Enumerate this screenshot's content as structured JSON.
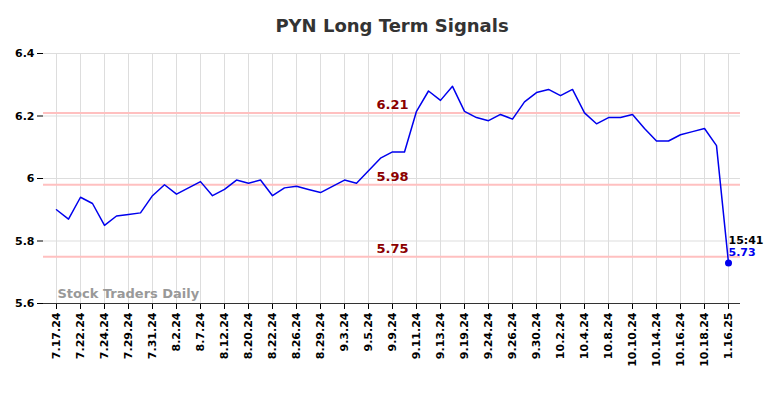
{
  "chart_data": {
    "type": "line",
    "title": "PYN Long Term Signals",
    "categories": [
      "7.17.24",
      null,
      "7.22.24",
      null,
      "7.24.24",
      null,
      "7.29.24",
      null,
      "7.31.24",
      null,
      "8.2.24",
      null,
      "8.7.24",
      null,
      "8.12.24",
      null,
      "8.20.24",
      null,
      "8.22.24",
      null,
      "8.26.24",
      null,
      "8.29.24",
      null,
      "9.3.24",
      null,
      "9.5.24",
      null,
      "9.9.24",
      null,
      "9.11.24",
      null,
      "9.13.24",
      null,
      "9.19.24",
      null,
      "9.24.24",
      null,
      "9.26.24",
      null,
      "9.30.24",
      null,
      "10.2.24",
      null,
      "10.4.24",
      null,
      "10.8.24",
      null,
      "10.10.24",
      null,
      "10.14.24",
      null,
      "10.16.24",
      null,
      "10.18.24",
      null,
      "1.16.25"
    ],
    "values": [
      5.9,
      5.87,
      5.94,
      5.92,
      5.85,
      5.88,
      5.885,
      5.89,
      5.945,
      5.98,
      5.95,
      5.97,
      5.99,
      5.945,
      5.965,
      5.995,
      5.985,
      5.995,
      5.945,
      5.97,
      5.975,
      5.965,
      5.955,
      5.975,
      5.995,
      5.985,
      6.025,
      6.065,
      6.085,
      6.085,
      6.215,
      6.28,
      6.25,
      6.295,
      6.215,
      6.195,
      6.185,
      6.205,
      6.19,
      6.245,
      6.275,
      6.285,
      6.265,
      6.285,
      6.21,
      6.175,
      6.195,
      6.195,
      6.205,
      6.16,
      6.12,
      6.12,
      6.14,
      6.15,
      6.16,
      6.105,
      5.73
    ],
    "color": "#0000ee",
    "ylim": [
      5.6,
      6.4
    ],
    "yticks": [
      5.6,
      5.8,
      6,
      6.2,
      6.4
    ],
    "grid": true,
    "levels": [
      6.21,
      5.98,
      5.75
    ],
    "last_point": {
      "time": "15:41",
      "value": 5.73
    },
    "watermark": "Stock Traders Daily"
  }
}
